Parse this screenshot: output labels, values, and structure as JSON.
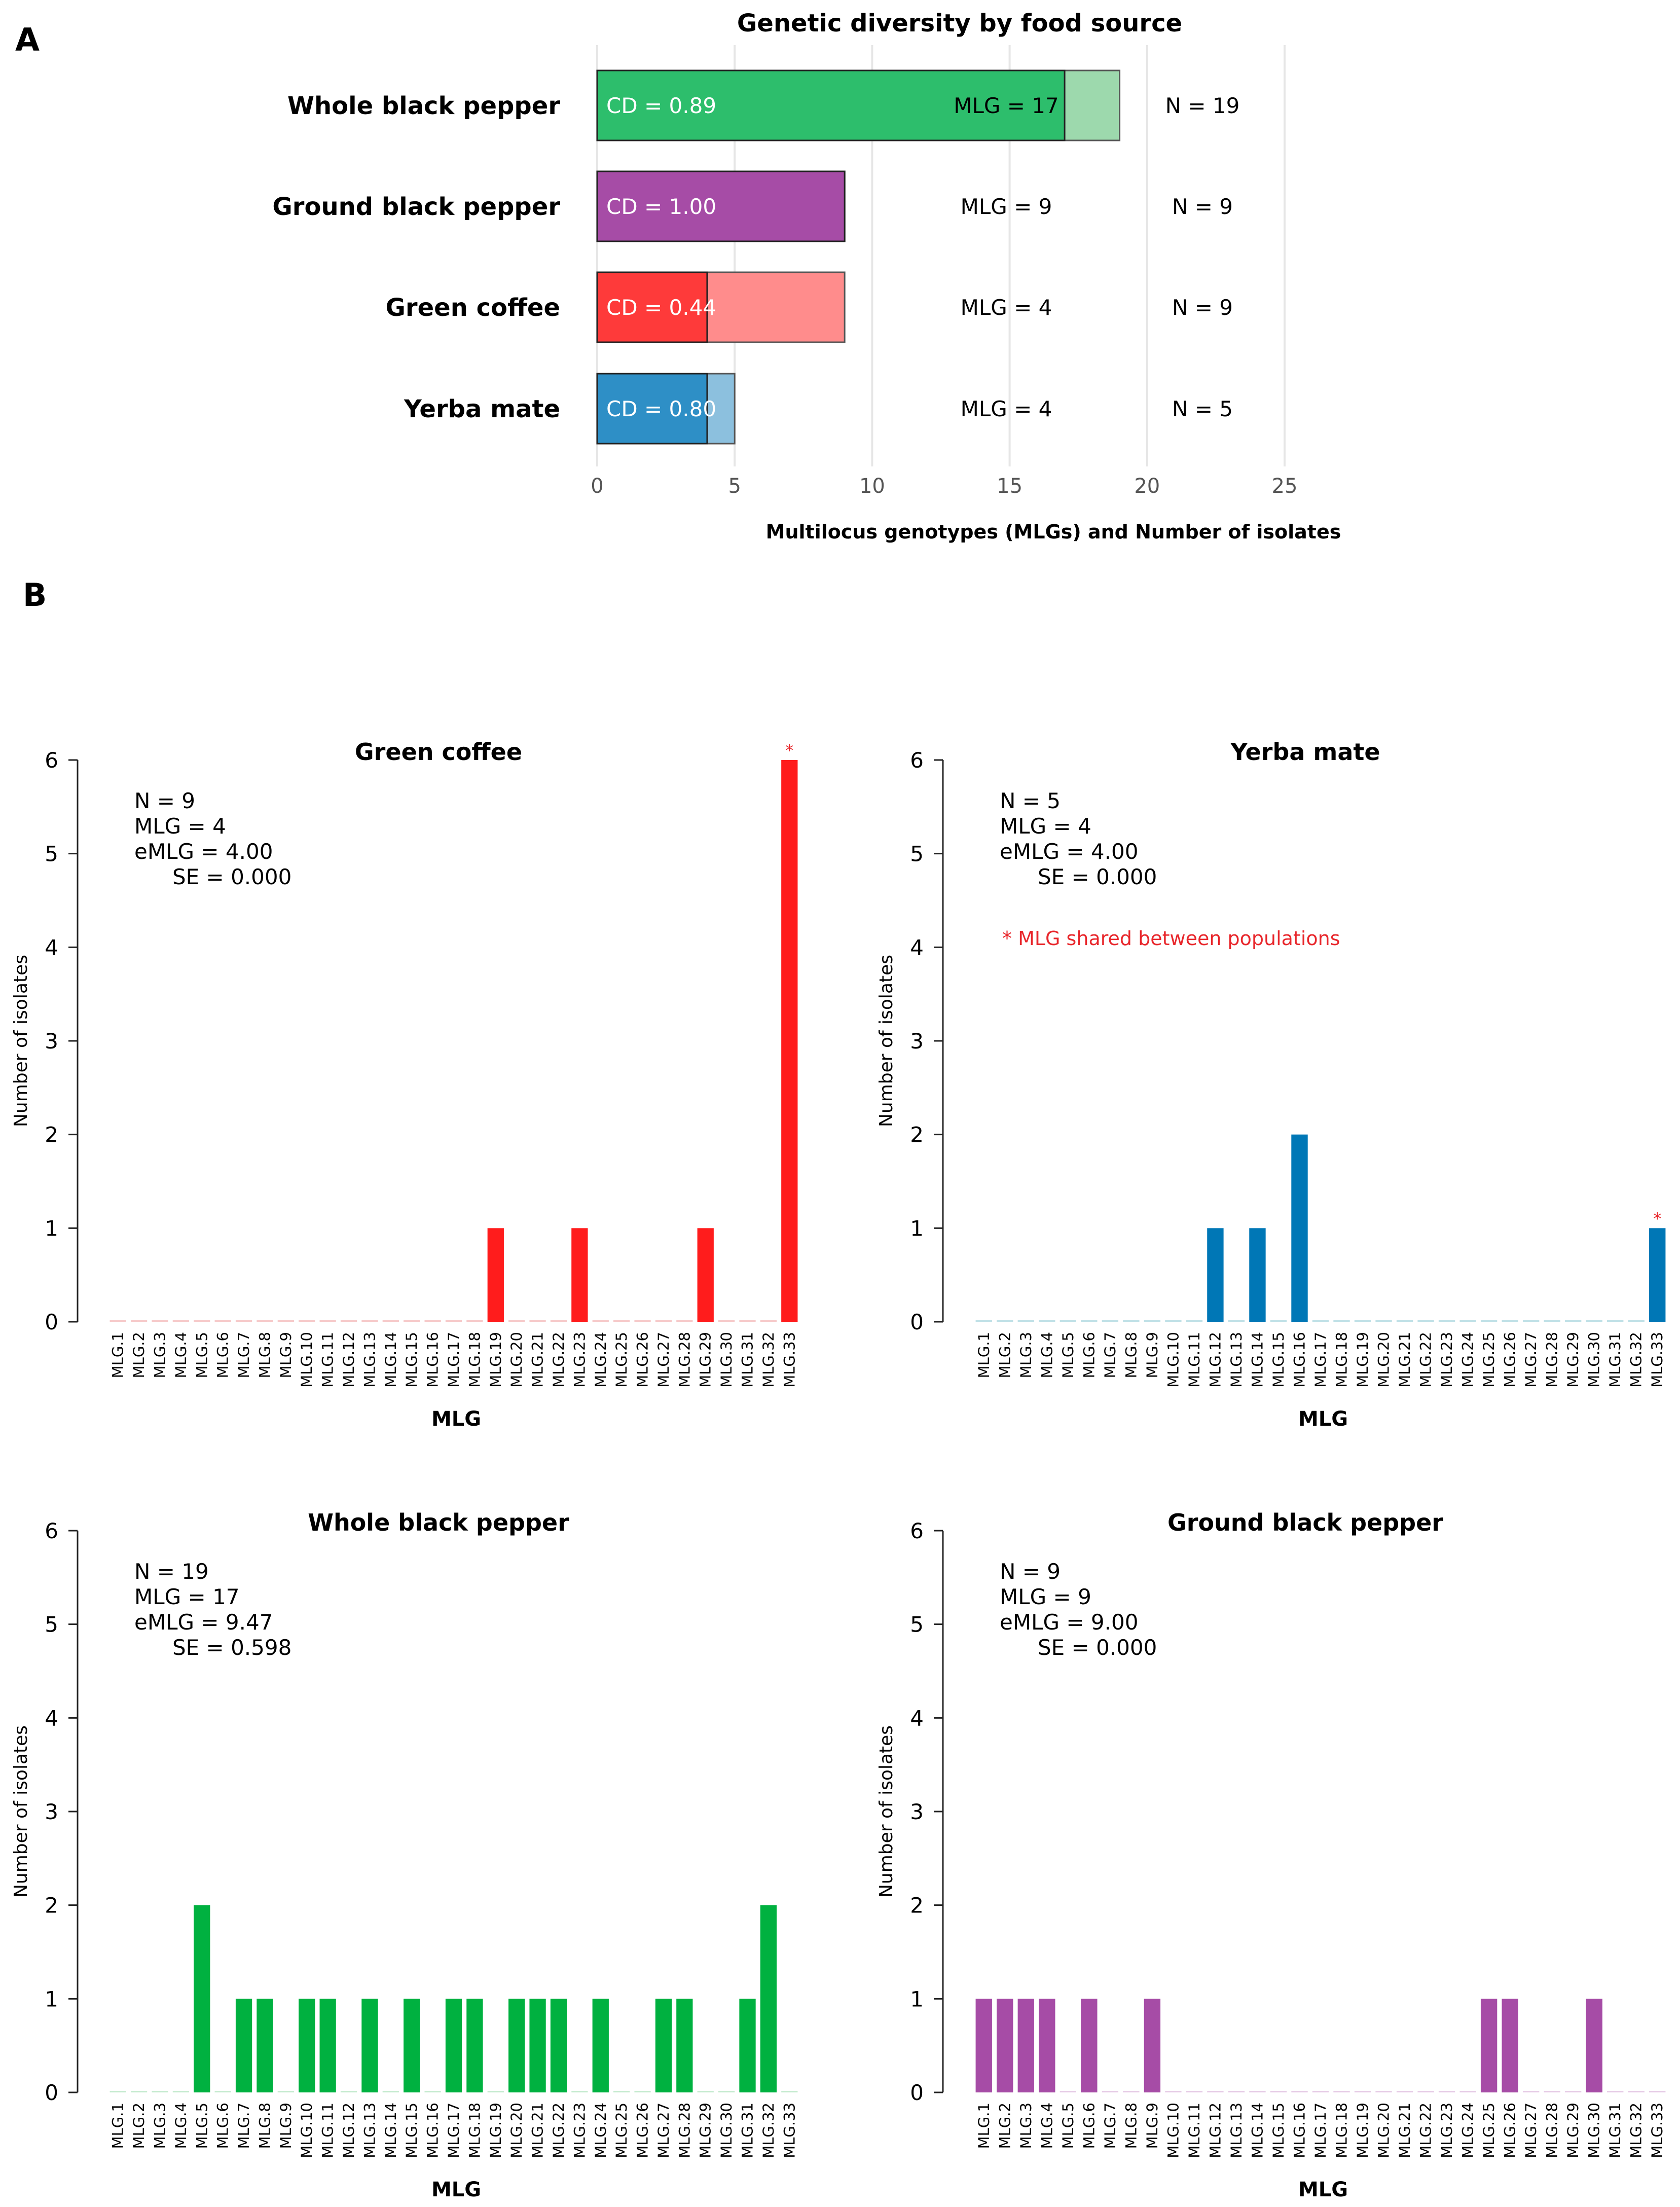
{
  "panel_labels": {
    "a": "A",
    "b": "B"
  },
  "chart_data": [
    {
      "type": "bar",
      "orientation": "horizontal",
      "title": "Genetic diversity by food source",
      "xlabel": "Multilocus genotypes (MLGs) and Number of isolates",
      "xlim": [
        0,
        25
      ],
      "xticks": [
        0,
        5,
        10,
        15,
        20,
        25
      ],
      "grid": true,
      "categories": [
        "Whole black pepper",
        "Ground black pepper",
        "Green coffee",
        "Yerba mate"
      ],
      "series": [
        {
          "name": "MLG",
          "values": [
            17,
            9,
            4,
            4
          ]
        },
        {
          "name": "N",
          "values": [
            19,
            9,
            9,
            5
          ]
        }
      ],
      "cd_labels": [
        "CD = 0.89",
        "CD = 1.00",
        "CD = 0.44",
        "CD = 0.80"
      ],
      "mlg_labels": [
        "MLG = 17",
        "MLG = 9",
        "MLG = 4",
        "MLG = 4"
      ],
      "n_labels": [
        "N = 19",
        "N = 9",
        "N = 9",
        "N = 5"
      ],
      "colors": [
        "#2dbe6c",
        "#a64ca6",
        "#fe3a3a",
        "#2e8fc6"
      ],
      "light_colors": [
        "#9dd9ad",
        "#a64ca6",
        "#ff8c8c",
        "#8cc0de"
      ]
    },
    {
      "type": "bar",
      "title": "Green coffee",
      "xlabel": "MLG",
      "ylabel": "Number of isolates",
      "ylim": [
        0,
        6
      ],
      "yticks": [
        0,
        1,
        2,
        3,
        4,
        5,
        6
      ],
      "color": "#ff1c1c",
      "zero_color": "#f6c9c9",
      "stats": [
        "N = 9",
        "MLG = 4",
        "eMLG = 4.00",
        "SE = 0.000"
      ],
      "values": [
        0,
        0,
        0,
        0,
        0,
        0,
        0,
        0,
        0,
        0,
        0,
        0,
        0,
        0,
        0,
        0,
        0,
        0,
        1,
        0,
        0,
        0,
        1,
        0,
        0,
        0,
        0,
        0,
        1,
        0,
        0,
        0,
        6
      ],
      "shared": [
        "MLG.33"
      ],
      "shared_marker": "*"
    },
    {
      "type": "bar",
      "title": "Yerba mate",
      "xlabel": "MLG",
      "ylabel": "Number of isolates",
      "ylim": [
        0,
        6
      ],
      "yticks": [
        0,
        1,
        2,
        3,
        4,
        5,
        6
      ],
      "color": "#0077b6",
      "zero_color": "#bfe0e6",
      "stats": [
        "N = 5",
        "MLG = 4",
        "eMLG = 4.00",
        "SE = 0.000"
      ],
      "note": "* MLG shared between populations",
      "note_color": "#e8262b",
      "values": [
        0,
        0,
        0,
        0,
        0,
        0,
        0,
        0,
        0,
        0,
        0,
        1,
        0,
        1,
        0,
        2,
        0,
        0,
        0,
        0,
        0,
        0,
        0,
        0,
        0,
        0,
        0,
        0,
        0,
        0,
        0,
        0,
        1
      ],
      "shared": [
        "MLG.33"
      ],
      "shared_marker": "*"
    },
    {
      "type": "bar",
      "title": "Whole black pepper",
      "xlabel": "MLG",
      "ylabel": "Number of isolates",
      "ylim": [
        0,
        6
      ],
      "yticks": [
        0,
        1,
        2,
        3,
        4,
        5,
        6
      ],
      "color": "#00b140",
      "zero_color": "#c6ebd0",
      "stats": [
        "N = 19",
        "MLG = 17",
        "eMLG = 9.47",
        "SE = 0.598"
      ],
      "values": [
        0,
        0,
        0,
        0,
        2,
        0,
        1,
        1,
        0,
        1,
        1,
        0,
        1,
        0,
        1,
        0,
        1,
        1,
        0,
        1,
        1,
        1,
        0,
        1,
        0,
        0,
        1,
        1,
        0,
        0,
        1,
        2,
        0
      ],
      "shared": []
    },
    {
      "type": "bar",
      "title": "Ground black pepper",
      "xlabel": "MLG",
      "ylabel": "Number of isolates",
      "ylim": [
        0,
        6
      ],
      "yticks": [
        0,
        1,
        2,
        3,
        4,
        5,
        6
      ],
      "color": "#a64ca6",
      "zero_color": "#e6cce6",
      "stats": [
        "N = 9",
        "MLG = 9",
        "eMLG = 9.00",
        "SE = 0.000"
      ],
      "values": [
        1,
        1,
        1,
        1,
        0,
        1,
        0,
        0,
        1,
        0,
        0,
        0,
        0,
        0,
        0,
        0,
        0,
        0,
        0,
        0,
        0,
        0,
        0,
        0,
        1,
        1,
        0,
        0,
        0,
        1,
        0,
        0,
        0
      ],
      "shared": []
    }
  ],
  "mlg_categories": [
    "MLG.1",
    "MLG.2",
    "MLG.3",
    "MLG.4",
    "MLG.5",
    "MLG.6",
    "MLG.7",
    "MLG.8",
    "MLG.9",
    "MLG.10",
    "MLG.11",
    "MLG.12",
    "MLG.13",
    "MLG.14",
    "MLG.15",
    "MLG.16",
    "MLG.17",
    "MLG.18",
    "MLG.19",
    "MLG.20",
    "MLG.21",
    "MLG.22",
    "MLG.23",
    "MLG.24",
    "MLG.25",
    "MLG.26",
    "MLG.27",
    "MLG.28",
    "MLG.29",
    "MLG.30",
    "MLG.31",
    "MLG.32",
    "MLG.33"
  ]
}
